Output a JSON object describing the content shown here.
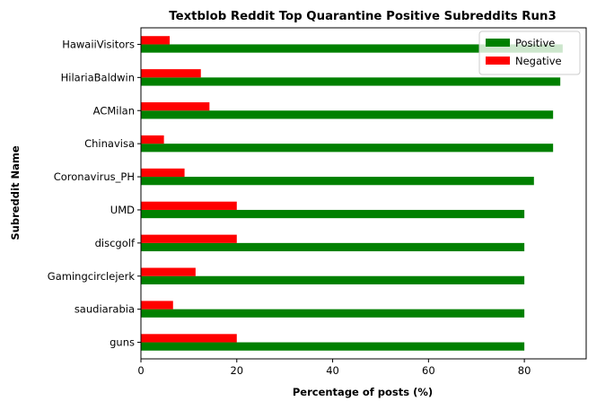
{
  "chart_data": {
    "type": "bar",
    "orientation": "horizontal",
    "title": "Textblob Reddit Top Quarantine Positive Subreddits Run3",
    "xlabel": "Percentage of posts (%)",
    "ylabel": "Subreddit Name",
    "categories": [
      "HawaiiVisitors",
      "HilariaBaldwin",
      "ACMilan",
      "Chinavisa",
      "Coronavirus_PH",
      "UMD",
      "discgolf",
      "Gamingcirclejerk",
      "saudiarabia",
      "guns"
    ],
    "series": [
      {
        "name": "Positive",
        "color": "#008000",
        "values": [
          88,
          87.5,
          86,
          86,
          82,
          80,
          80,
          80,
          80,
          80
        ]
      },
      {
        "name": "Negative",
        "color": "#ff0000",
        "values": [
          6,
          12.5,
          14.3,
          4.8,
          9.1,
          20,
          20,
          11.4,
          6.7,
          20
        ]
      }
    ],
    "xlim": [
      0,
      92.9
    ],
    "xticks": [
      0,
      20,
      40,
      60,
      80
    ],
    "legend": {
      "position": "upper-right"
    },
    "grid": false
  }
}
